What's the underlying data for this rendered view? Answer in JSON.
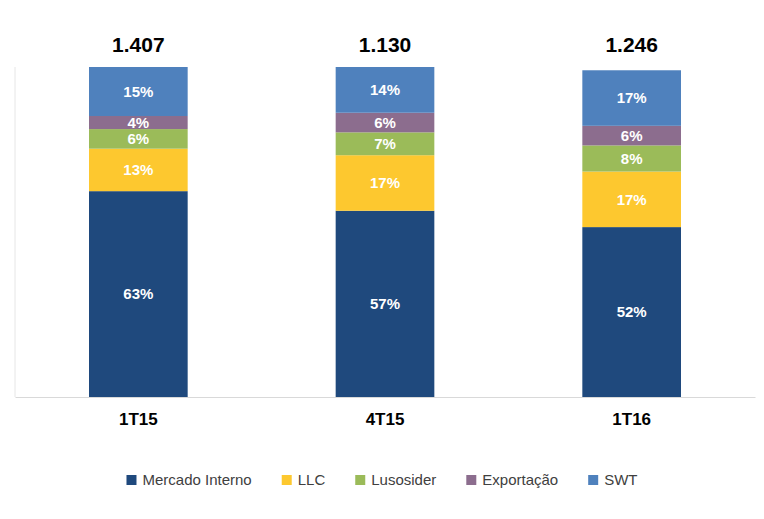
{
  "chart_data": {
    "type": "bar",
    "stacked": true,
    "data_labels": true,
    "tick_labels": "x",
    "legend": "bottom",
    "categories": [
      "1T15",
      "4T15",
      "1T16"
    ],
    "ylim": [
      0,
      101
    ],
    "totals": {
      "values": [
        1407,
        1130,
        1246
      ],
      "value_labels": [
        "1.407",
        "1.130",
        "1.246"
      ]
    },
    "series": [
      {
        "name": "Mercado Interno",
        "color": "#1f497d",
        "values": [
          63,
          57,
          52
        ],
        "value_labels": [
          "63%",
          "57%",
          "52%"
        ]
      },
      {
        "name": "LLC",
        "color": "#fdc82f",
        "values": [
          13,
          17,
          17
        ],
        "value_labels": [
          "13%",
          "17%",
          "17%"
        ]
      },
      {
        "name": "Lusosider",
        "color": "#9bbb59",
        "values": [
          6,
          7,
          8
        ],
        "value_labels": [
          "6%",
          "7%",
          "8%"
        ]
      },
      {
        "name": "Exportação",
        "color": "#8c6d8e",
        "values": [
          4,
          6,
          6
        ],
        "value_labels": [
          "4%",
          "6%",
          "6%"
        ]
      },
      {
        "name": "SWT",
        "color": "#4f81bd",
        "values": [
          15,
          14,
          17
        ],
        "value_labels": [
          "15%",
          "14%",
          "17%"
        ]
      }
    ]
  }
}
